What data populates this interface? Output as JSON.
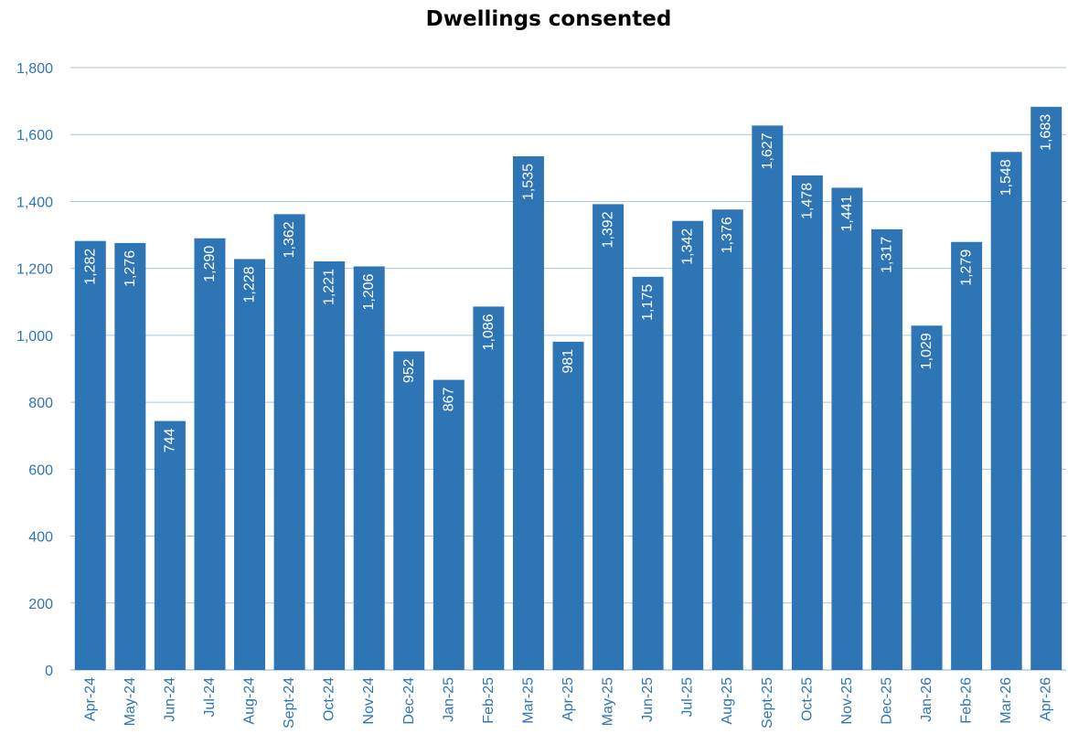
{
  "chart_data": {
    "type": "bar",
    "title": "Dwellings consented",
    "xlabel": "",
    "ylabel": "",
    "ylim": [
      0,
      1800
    ],
    "yticks": [
      0,
      200,
      400,
      600,
      800,
      1000,
      1200,
      1400,
      1600,
      1800
    ],
    "ytick_labels": [
      "0",
      "200",
      "400",
      "600",
      "800",
      "1,000",
      "1,200",
      "1,400",
      "1,600",
      "1,800"
    ],
    "grid": true,
    "legend": "none",
    "categories": [
      "Apr-24",
      "May-24",
      "Jun-24",
      "Jul-24",
      "Aug-24",
      "Sept-24",
      "Oct-24",
      "Nov-24",
      "Dec-24",
      "Jan-25",
      "Feb-25",
      "Mar-25",
      "Apr-25",
      "May-25",
      "Jun-25",
      "Jul-25",
      "Aug-25",
      "Sept-25",
      "Oct-25",
      "Nov-25",
      "Dec-25",
      "Jan-26",
      "Feb-26",
      "Mar-26",
      "Apr-26"
    ],
    "values": [
      1282,
      1276,
      744,
      1290,
      1228,
      1362,
      1221,
      1206,
      952,
      867,
      1086,
      1535,
      981,
      1392,
      1175,
      1342,
      1376,
      1627,
      1478,
      1441,
      1317,
      1029,
      1279,
      1548,
      1683
    ],
    "value_labels": [
      "1,282",
      "1,276",
      "744",
      "1,290",
      "1,228",
      "1,362",
      "1,221",
      "1,206",
      "952",
      "867",
      "1,086",
      "1,535",
      "981",
      "1,392",
      "1,175",
      "1,342",
      "1,376",
      "1,627",
      "1,478",
      "1,441",
      "1,317",
      "1,029",
      "1,279",
      "1,548",
      "1,683"
    ],
    "colors": {
      "bar": "#2e75b6",
      "grid": "#a9c4e0",
      "axis_text": "#2e75b6",
      "data_label": "#ffffff"
    }
  }
}
